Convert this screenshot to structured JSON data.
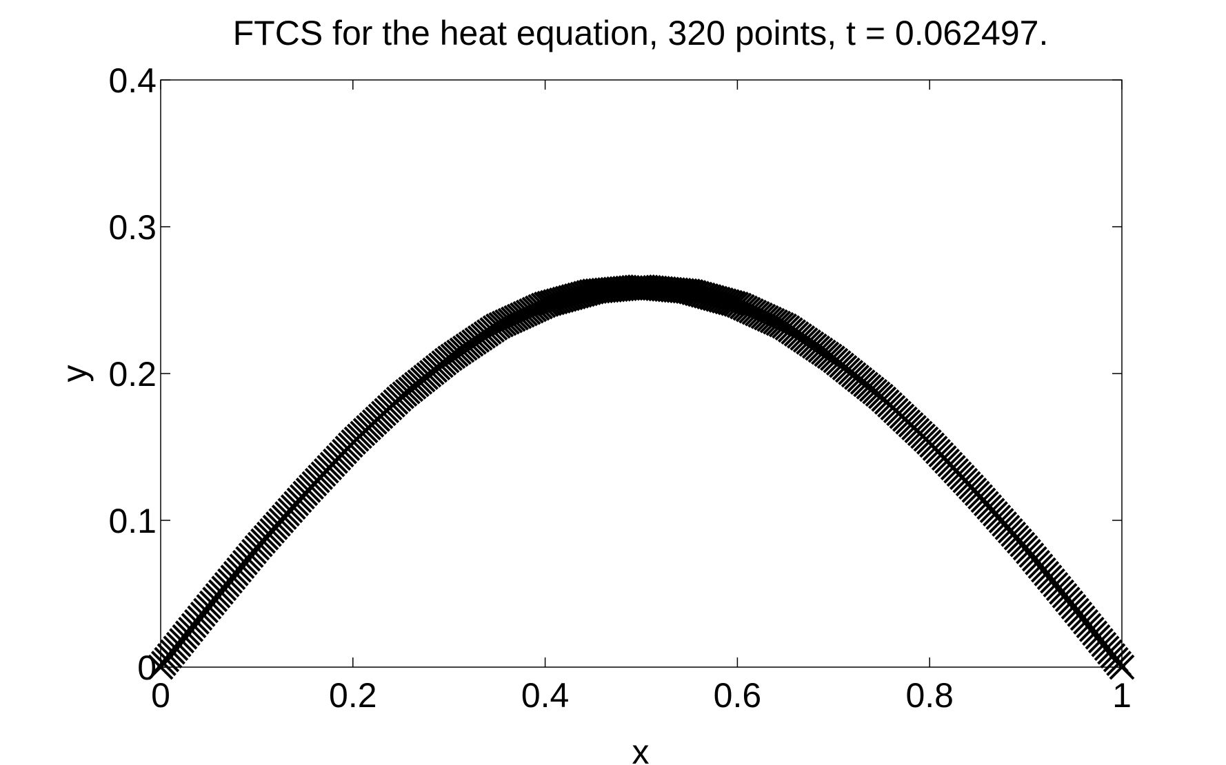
{
  "chart_data": {
    "type": "scatter",
    "title": "FTCS for the heat equation, 320 points, t = 0.062497.",
    "xlabel": "x",
    "ylabel": "y",
    "xlim": [
      0,
      1
    ],
    "ylim": [
      0,
      0.4
    ],
    "xticks": [
      "0",
      "0.2",
      "0.4",
      "0.6",
      "0.8",
      "1"
    ],
    "yticks": [
      "0",
      "0.1",
      "0.2",
      "0.3",
      "0.4"
    ],
    "grid": false,
    "marker": "x",
    "marker_color": "#000000",
    "series": [
      {
        "x": [
          0,
          0.05,
          0.1,
          0.15,
          0.2,
          0.25,
          0.3,
          0.35,
          0.4,
          0.45,
          0.5,
          0.55,
          0.6,
          0.65,
          0.7,
          0.75,
          0.8,
          0.85,
          0.9,
          0.95,
          1
        ],
        "values": [
          0,
          0.041,
          0.081,
          0.118,
          0.153,
          0.184,
          0.21,
          0.232,
          0.247,
          0.256,
          0.259,
          0.256,
          0.247,
          0.232,
          0.21,
          0.184,
          0.153,
          0.118,
          0.081,
          0.041,
          0
        ],
        "points": 320
      }
    ]
  }
}
